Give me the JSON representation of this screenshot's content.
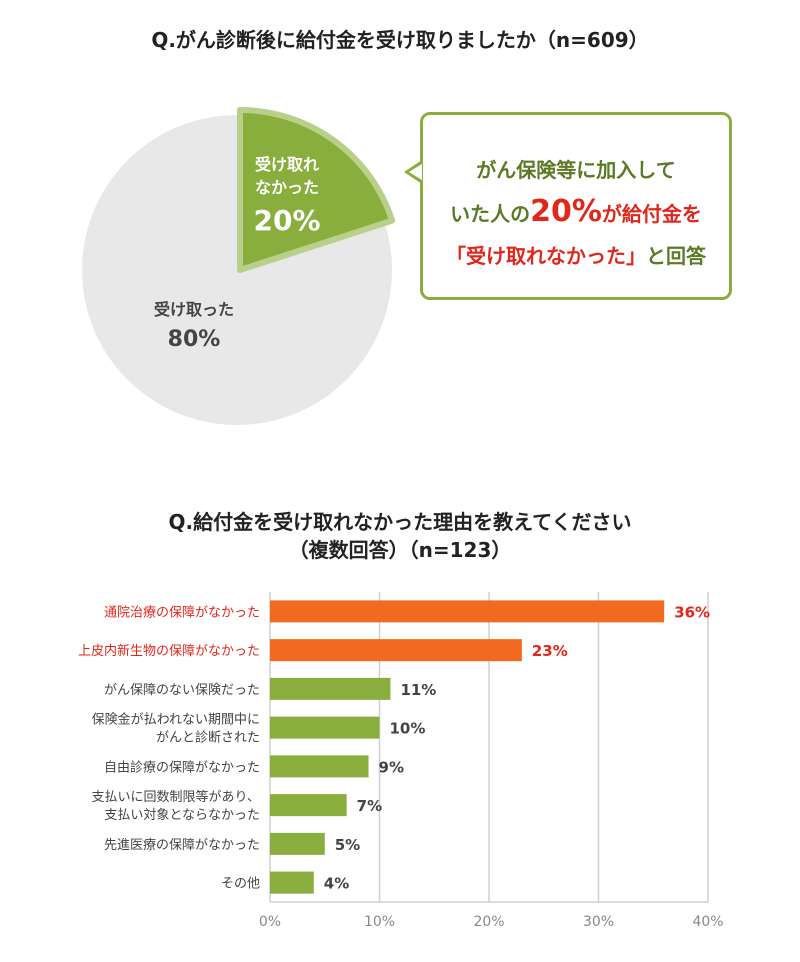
{
  "chart_data": [
    {
      "type": "pie",
      "title": "Q.がん診断後に給付金を受け取りましたか（n=609）",
      "slices": [
        {
          "label": "受け取れなかった",
          "value": 20,
          "value_label": "20%",
          "color": "#8aae3e",
          "exploded": true
        },
        {
          "label": "受け取った",
          "value": 80,
          "value_label": "80%",
          "color": "#e8e8e8"
        }
      ],
      "callout": {
        "line1": "がん保険等に加入して",
        "line2_a": "いた人の",
        "line2_b": "20%",
        "line2_c": "が給付金を",
        "line3_a": "「受け取れなかった」",
        "line3_b": "と回答"
      }
    },
    {
      "type": "bar",
      "orientation": "horizontal",
      "title_line1": "Q.給付金を受け取れなかった理由を教えてください",
      "title_line2": "（複数回答）（n=123）",
      "categories": [
        "通院治療の保障がなかった",
        "上皮内新生物の保障がなかった",
        "がん保障のない保険だった",
        "保険金が払われない期間中に\nがんと診断された",
        "自由診療の保障がなかった",
        "支払いに回数制限等があり、\n支払い対象とならなかった",
        "先進医療の保障がなかった",
        "その他"
      ],
      "values": [
        36,
        23,
        11,
        10,
        9,
        7,
        5,
        4
      ],
      "value_labels": [
        "36%",
        "23%",
        "11%",
        "10%",
        "9%",
        "7%",
        "5%",
        "4%"
      ],
      "highlight": [
        true,
        true,
        false,
        false,
        false,
        false,
        false,
        false
      ],
      "colors": {
        "highlight": "#f26a1f",
        "normal": "#8aae3e",
        "highlight_text": "#e3261b"
      },
      "xlim": [
        0,
        40
      ],
      "xticks": [
        "0%",
        "10%",
        "20%",
        "30%",
        "40%"
      ],
      "grid": true
    }
  ]
}
